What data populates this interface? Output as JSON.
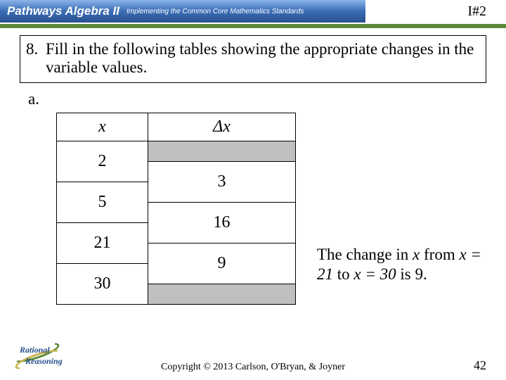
{
  "header": {
    "title": "Pathways Algebra II",
    "subtitle": "Implementing the Common Core Mathematics Standards",
    "code": "I#2",
    "line_color": "#5a8a3a"
  },
  "question": {
    "number": "8.",
    "text": "Fill in the following tables showing the appropriate changes in the variable values.",
    "part": "a."
  },
  "table": {
    "col1_header": "x",
    "col2_header": "Δx",
    "x_values": [
      "2",
      "5",
      "21",
      "30"
    ],
    "dx_values": [
      "3",
      "16",
      "9"
    ],
    "blank_fill": "#bfbfbf"
  },
  "note": {
    "text_prefix": "The change in ",
    "var": "x",
    "text_mid1": " from ",
    "eq1": "x = 21",
    "text_mid2": " to ",
    "eq2": "x = 30",
    "text_suffix": " is 9."
  },
  "footer": {
    "copyright": "Copyright © 2013 Carlson, O'Bryan, & Joyner",
    "page": "42",
    "logo_line1": "Rational",
    "logo_line2": "Reasoning"
  }
}
